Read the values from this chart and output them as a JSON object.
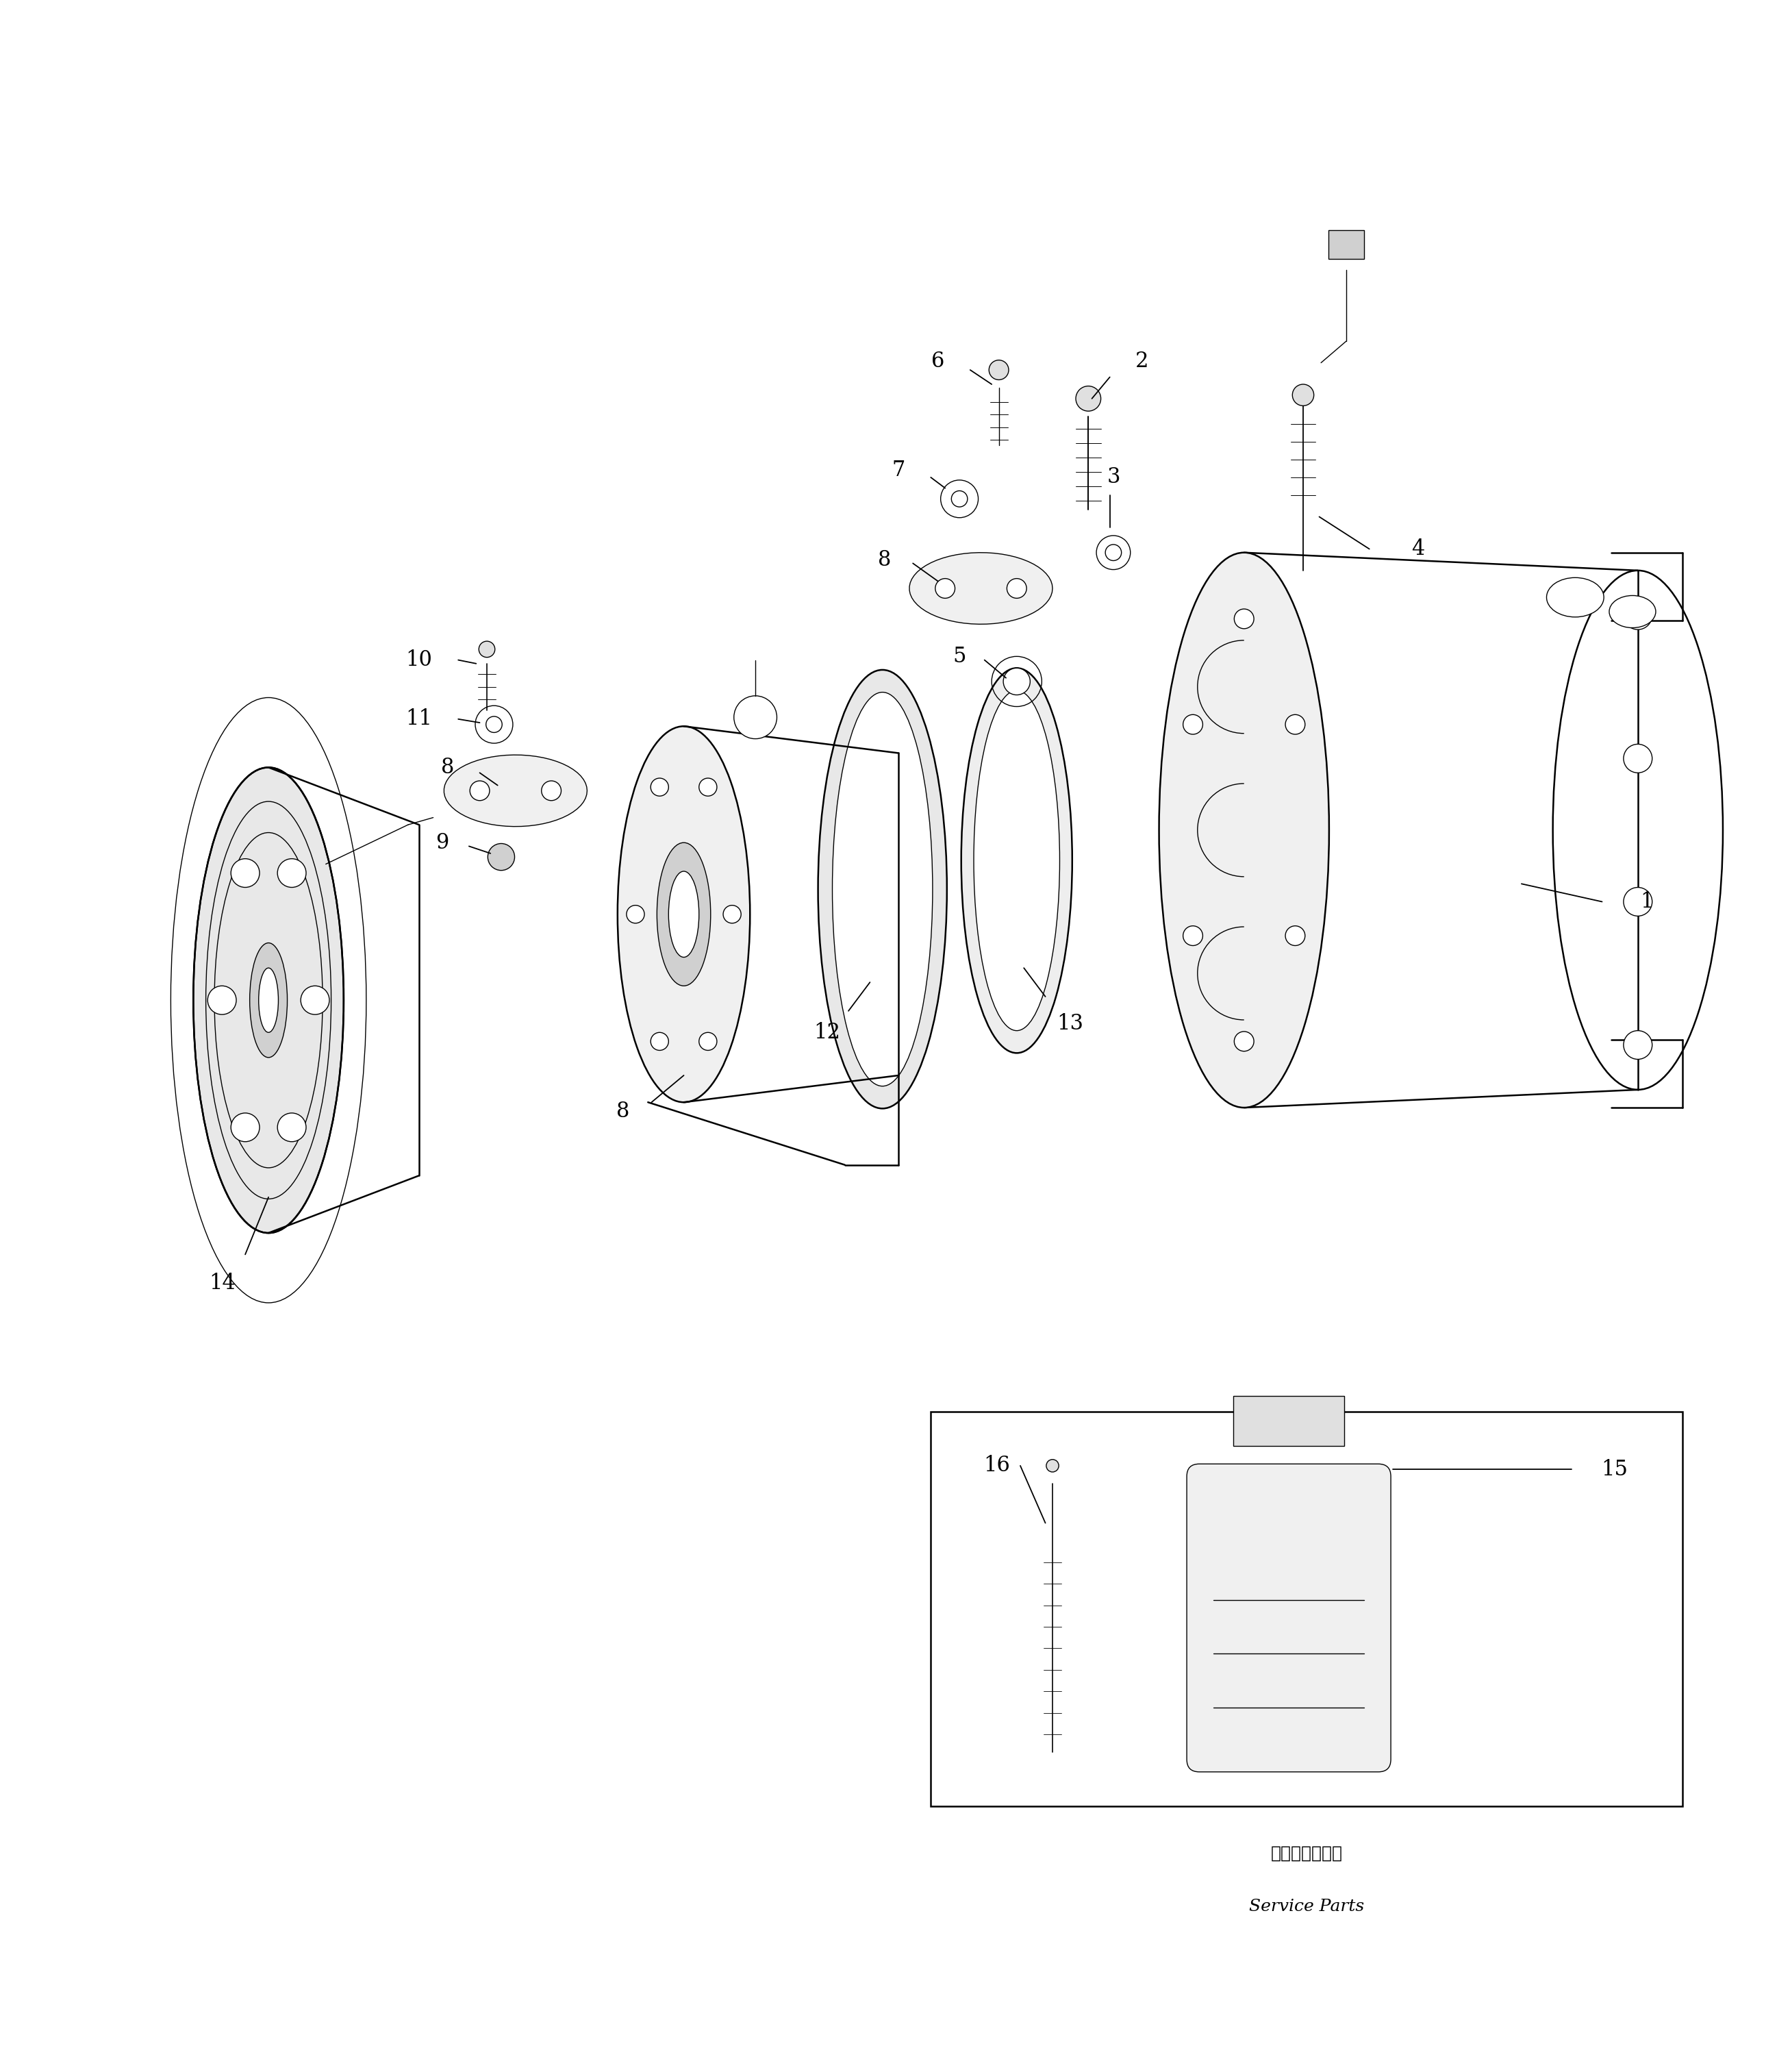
{
  "bg_color": "#ffffff",
  "line_color": "#000000",
  "fig_width": 26.14,
  "fig_height": 30.25,
  "service_parts_ja": "サービスパーツ",
  "service_parts_en": "Service Parts"
}
